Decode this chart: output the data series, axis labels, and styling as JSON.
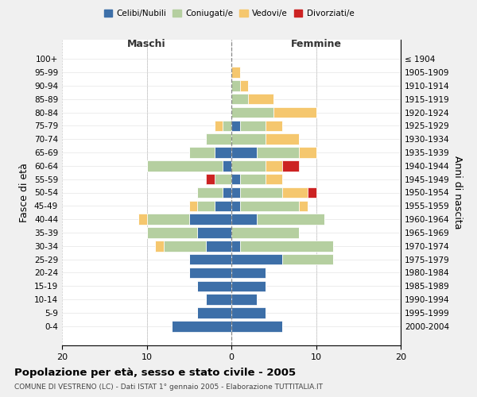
{
  "age_groups": [
    "0-4",
    "5-9",
    "10-14",
    "15-19",
    "20-24",
    "25-29",
    "30-34",
    "35-39",
    "40-44",
    "45-49",
    "50-54",
    "55-59",
    "60-64",
    "65-69",
    "70-74",
    "75-79",
    "80-84",
    "85-89",
    "90-94",
    "95-99",
    "100+"
  ],
  "birth_years": [
    "2000-2004",
    "1995-1999",
    "1990-1994",
    "1985-1989",
    "1980-1984",
    "1975-1979",
    "1970-1974",
    "1965-1969",
    "1960-1964",
    "1955-1959",
    "1950-1954",
    "1945-1949",
    "1940-1944",
    "1935-1939",
    "1930-1934",
    "1925-1929",
    "1920-1924",
    "1915-1919",
    "1910-1914",
    "1905-1909",
    "≤ 1904"
  ],
  "colors": {
    "celibi": "#3d6fa8",
    "coniugati": "#b5cfa0",
    "vedovi": "#f5c76e",
    "divorziati": "#cc2222"
  },
  "maschi": {
    "celibi": [
      7,
      4,
      3,
      4,
      5,
      5,
      3,
      4,
      5,
      2,
      1,
      0,
      1,
      2,
      0,
      0,
      0,
      0,
      0,
      0,
      0
    ],
    "coniugati": [
      0,
      0,
      0,
      0,
      0,
      0,
      5,
      6,
      5,
      2,
      3,
      2,
      9,
      3,
      3,
      1,
      0,
      0,
      0,
      0,
      0
    ],
    "vedovi": [
      0,
      0,
      0,
      0,
      0,
      0,
      1,
      0,
      1,
      1,
      0,
      0,
      0,
      0,
      0,
      1,
      0,
      0,
      0,
      0,
      0
    ],
    "divorziati": [
      0,
      0,
      0,
      0,
      0,
      0,
      0,
      0,
      0,
      0,
      0,
      1,
      0,
      0,
      0,
      0,
      0,
      0,
      0,
      0,
      0
    ]
  },
  "femmine": {
    "celibi": [
      6,
      4,
      3,
      4,
      4,
      6,
      1,
      0,
      3,
      1,
      1,
      1,
      0,
      3,
      0,
      1,
      0,
      0,
      0,
      0,
      0
    ],
    "coniugati": [
      0,
      0,
      0,
      0,
      0,
      6,
      11,
      8,
      8,
      7,
      5,
      3,
      4,
      5,
      4,
      3,
      5,
      2,
      1,
      0,
      0
    ],
    "vedovi": [
      0,
      0,
      0,
      0,
      0,
      0,
      0,
      0,
      0,
      1,
      3,
      2,
      2,
      2,
      4,
      2,
      5,
      3,
      1,
      1,
      0
    ],
    "divorziati": [
      0,
      0,
      0,
      0,
      0,
      0,
      0,
      0,
      0,
      0,
      1,
      0,
      2,
      0,
      0,
      0,
      0,
      0,
      0,
      0,
      0
    ]
  },
  "xlim": [
    -20,
    20
  ],
  "xticks": [
    -20,
    -10,
    0,
    10,
    20
  ],
  "xticklabels": [
    "20",
    "10",
    "0",
    "10",
    "20"
  ],
  "title": "Popolazione per età, sesso e stato civile - 2005",
  "subtitle": "COMUNE DI VESTRENO (LC) - Dati ISTAT 1° gennaio 2005 - Elaborazione TUTTITALIA.IT",
  "ylabel_left": "Fasce di età",
  "ylabel_right": "Anni di nascita",
  "label_maschi": "Maschi",
  "label_femmine": "Femmine",
  "legend_labels": [
    "Celibi/Nubili",
    "Coniugati/e",
    "Vedovi/e",
    "Divorziati/e"
  ],
  "bg_color": "#f0f0f0",
  "plot_bg": "#ffffff"
}
